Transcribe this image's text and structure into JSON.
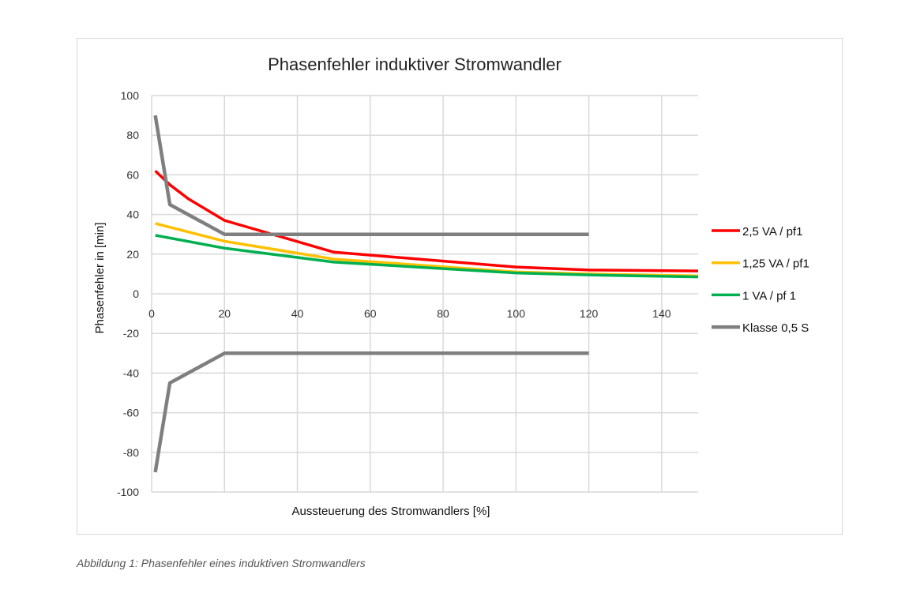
{
  "chart_data": {
    "type": "line",
    "title": "Phasenfehler induktiver Stromwandler",
    "xlabel": "Aussteuerung des Stromwandlers [%]",
    "ylabel": "Phasenfehler in [min]",
    "xlim": [
      0,
      150
    ],
    "ylim": [
      -100,
      100
    ],
    "xticks": [
      0,
      20,
      40,
      60,
      80,
      100,
      120,
      140
    ],
    "yticks": [
      100,
      80,
      60,
      40,
      20,
      0,
      -20,
      -40,
      -60,
      -80,
      -100
    ],
    "grid": true,
    "legend_position": "right",
    "series": [
      {
        "name": "2,5 VA / pf1",
        "color": "#ff0000",
        "points": [
          [
            1,
            62
          ],
          [
            5,
            55
          ],
          [
            10,
            48
          ],
          [
            20,
            37
          ],
          [
            50,
            21
          ],
          [
            100,
            13.5
          ],
          [
            120,
            12
          ],
          [
            150,
            11.5
          ]
        ]
      },
      {
        "name": "1,25 VA / pf1",
        "color": "#ffc000",
        "points": [
          [
            1,
            35.5
          ],
          [
            20,
            26.5
          ],
          [
            50,
            17.5
          ],
          [
            100,
            11
          ],
          [
            120,
            10
          ],
          [
            150,
            9
          ]
        ]
      },
      {
        "name": "1 VA / pf 1",
        "color": "#00b050",
        "points": [
          [
            1,
            29.5
          ],
          [
            20,
            23
          ],
          [
            50,
            16
          ],
          [
            100,
            10.5
          ],
          [
            120,
            9.5
          ],
          [
            150,
            8.5
          ]
        ]
      },
      {
        "name": "Klasse 0,5 S",
        "color": "#7f7f7f",
        "points": [
          [
            1,
            90
          ],
          [
            5,
            45
          ],
          [
            20,
            30
          ],
          [
            120,
            30
          ]
        ],
        "lower_points": [
          [
            1,
            -90
          ],
          [
            5,
            -45
          ],
          [
            20,
            -30
          ],
          [
            120,
            -30
          ]
        ]
      }
    ]
  },
  "caption": "Abbildung 1: Phasenfehler eines induktiven Stromwandlers"
}
